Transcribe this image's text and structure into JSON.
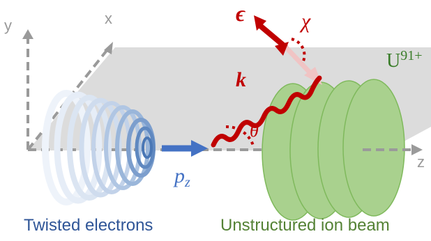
{
  "axes": {
    "x": "x",
    "y": "y",
    "z": "z"
  },
  "symbols": {
    "polarization": "ϵ",
    "wavevector": "k",
    "chi": "χ",
    "theta": "θ",
    "ion_base": "U",
    "ion_charge": "91+",
    "momentum_base": "p",
    "momentum_sub": "z"
  },
  "captions": {
    "electrons": "Twisted electrons",
    "ion_beam": "Unstructured ion beam"
  },
  "colors": {
    "plane": "#d9d9d9",
    "axis": "#9a9a9a",
    "photon": "#c00000",
    "electron": "#4472c4",
    "ion_fill": "#a9d18e",
    "ion_edge": "#70ad47"
  }
}
